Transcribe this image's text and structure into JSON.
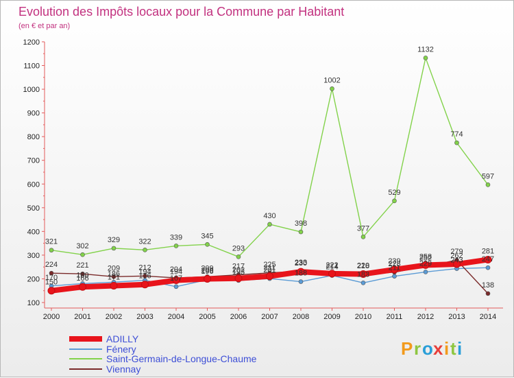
{
  "chart_data": {
    "type": "line",
    "title": "Evolution des Impôts locaux pour la Commune par Habitant",
    "subtitle": "(en € et par an)",
    "xlabel": "",
    "ylabel": "",
    "x": [
      "2000",
      "2001",
      "2002",
      "2003",
      "2004",
      "2005",
      "2006",
      "2007",
      "2008",
      "2009",
      "2010",
      "2011",
      "2012",
      "2013",
      "2014"
    ],
    "ylim": [
      100,
      1200
    ],
    "yticks": [
      100,
      200,
      300,
      400,
      500,
      600,
      700,
      800,
      900,
      1000,
      1100,
      1200
    ],
    "grid": false,
    "legend_position": "bottom-left",
    "series": [
      {
        "name": "ADILLY",
        "color": "#e8141b",
        "values": [
          150,
          166,
          171,
          176,
          194,
          200,
          202,
          211,
          230,
          222,
          220,
          239,
          258,
          262,
          281
        ],
        "labels": [
          "150",
          "166",
          "171",
          "176",
          "194",
          "200",
          "202",
          "211",
          "230",
          "222",
          "220",
          "239",
          "258",
          "262",
          "281"
        ]
      },
      {
        "name": "Fénery",
        "color": "#5b9bd5",
        "values": [
          170,
          180,
          186,
          194,
          167,
          196,
          193,
          201,
          188,
          214,
          183,
          211,
          229,
          243,
          247
        ],
        "labels": [
          "170",
          "180",
          "186",
          "194",
          "167",
          "196",
          "193",
          "201",
          "188",
          "214",
          "183",
          "211",
          "229",
          "243",
          "247"
        ]
      },
      {
        "name": "Saint-Germain-de-Longue-Chaume",
        "color": "#82d24a",
        "values": [
          321,
          302,
          329,
          322,
          339,
          345,
          293,
          430,
          398,
          1002,
          377,
          529,
          1132,
          774,
          597
        ],
        "labels": [
          "321",
          "302",
          "329",
          "322",
          "339",
          "345",
          "293",
          "430",
          "398",
          "1002",
          "377",
          "529",
          "1132",
          "774",
          "597"
        ]
      },
      {
        "name": "Viennay",
        "color": "#7a2a2a",
        "values": [
          224,
          221,
          209,
          212,
          204,
          209,
          217,
          225,
          233,
          221,
          218,
          228,
          252,
          279,
          138
        ],
        "labels": [
          "224",
          "221",
          "209",
          "212",
          "204",
          "209",
          "217",
          "225",
          "233",
          "221",
          "218",
          "228",
          "252",
          "279",
          "138"
        ]
      }
    ]
  },
  "branding": {
    "letters": [
      "P",
      "r",
      "o",
      "x",
      "i",
      "t",
      "i"
    ],
    "colors": [
      "#f29a1c",
      "#8ec641",
      "#2a9fd8",
      "#e73e3a",
      "#f29a1c",
      "#8ec641",
      "#2a9fd8"
    ]
  }
}
